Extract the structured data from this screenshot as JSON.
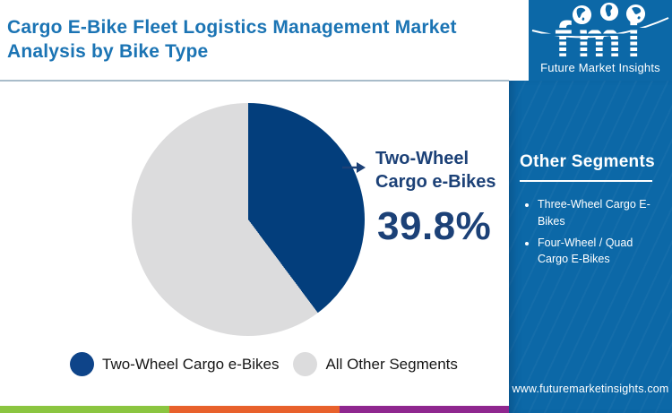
{
  "header": {
    "title": "Cargo E-Bike Fleet Logistics Management Market Analysis by Bike Type"
  },
  "logo": {
    "acronym": "fmi",
    "name": "Future Market Insights"
  },
  "chart_data": {
    "type": "pie",
    "title": "Cargo E-Bike Fleet Logistics Management Market Analysis by Bike Type",
    "slices": [
      {
        "label": "Two-Wheel Cargo e-Bikes",
        "value": 39.8,
        "color": "#033e7c"
      },
      {
        "label": "All Other Segments",
        "value": 60.2,
        "color": "#dcdcdd"
      }
    ],
    "start_angle_deg": 0,
    "direction": "clockwise",
    "legend_position": "bottom",
    "callout": {
      "label": "Two-Wheel Cargo e-Bikes",
      "value_text": "39.8%"
    }
  },
  "legend": [
    {
      "label": "Two-Wheel Cargo e-Bikes",
      "color": "#0e4489"
    },
    {
      "label": "All Other Segments",
      "color": "#dcdcdd"
    }
  ],
  "sidebar": {
    "heading": "Other Segments",
    "items": [
      "Three-Wheel Cargo E-Bikes",
      "Four-Wheel / Quad Cargo E-Bikes"
    ],
    "website": "www.futuremarketinsights.com"
  },
  "colors": {
    "title_blue": "#1b74b4",
    "sidebar_blue": "#0c68a7",
    "callout_navy": "#1c4177",
    "stripe": [
      "#8bc540",
      "#e8612c",
      "#8f278f"
    ]
  }
}
